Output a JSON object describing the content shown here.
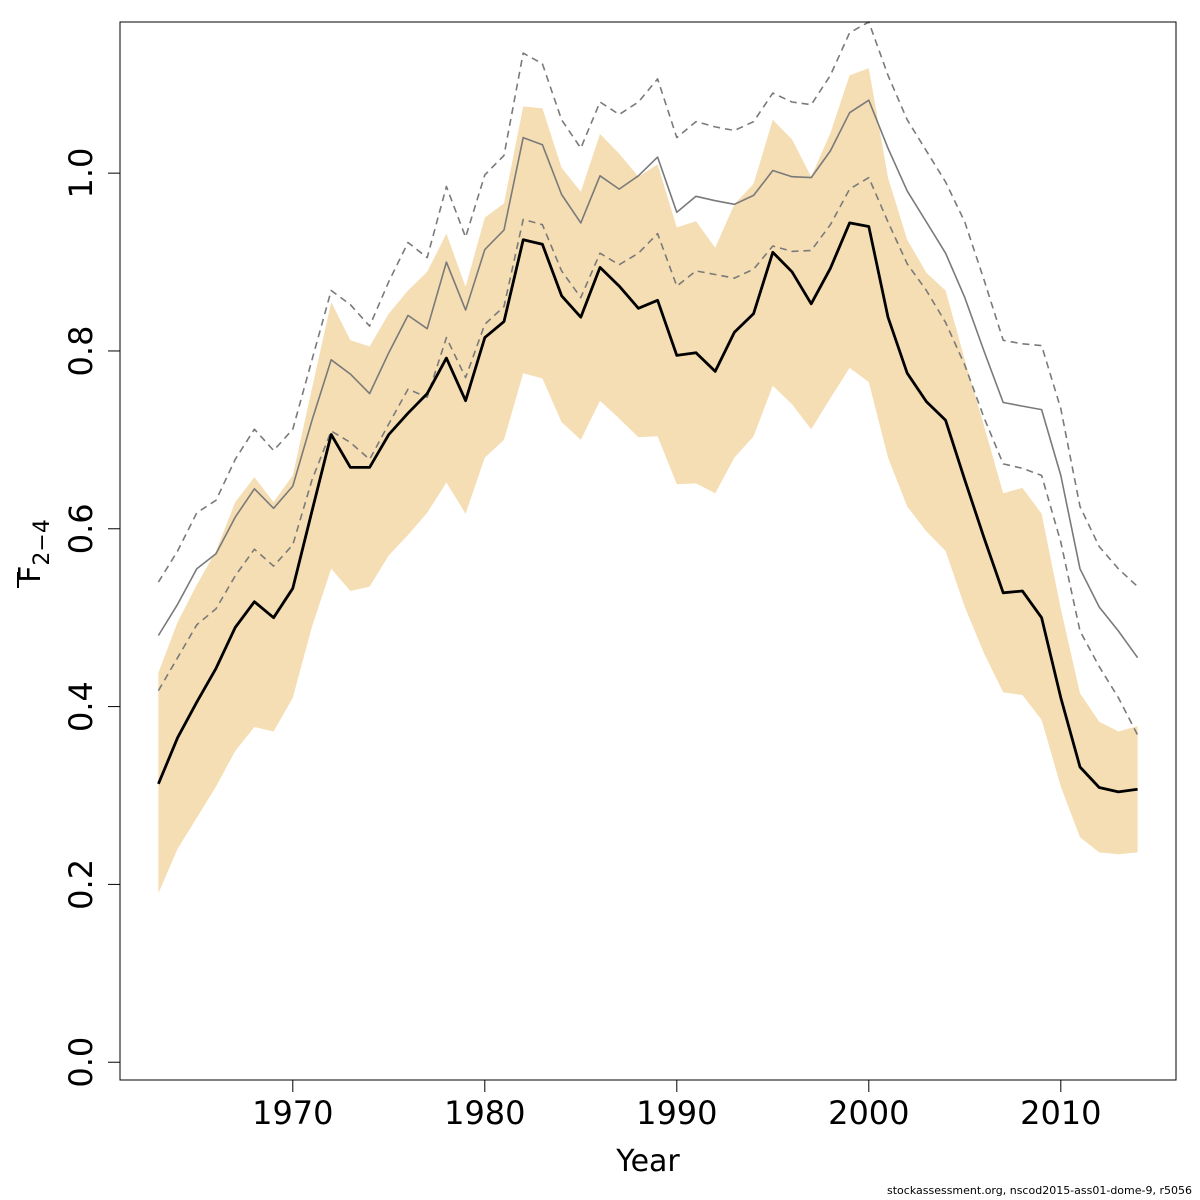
{
  "chart_data": {
    "type": "line",
    "xlabel": "Year",
    "ylabel": {
      "base": "F",
      "subscript": "2−4"
    },
    "xlim": [
      1961,
      2016
    ],
    "ylim": [
      -0.02,
      1.17
    ],
    "x_ticks": [
      1970,
      1980,
      1990,
      2000,
      2010
    ],
    "y_ticks": [
      0.0,
      0.2,
      0.4,
      0.6,
      0.8,
      1.0
    ],
    "x_tick_labels": [
      "1970",
      "1980",
      "1990",
      "2000",
      "2010"
    ],
    "y_tick_labels": [
      "0.0",
      "0.2",
      "0.4",
      "0.6",
      "0.8",
      "1.0"
    ],
    "colors": {
      "band": "#f5deb3",
      "estimate": "#000000",
      "retro": "#7a7a7a"
    },
    "x": [
      1963,
      1964,
      1965,
      1966,
      1967,
      1968,
      1969,
      1970,
      1971,
      1972,
      1973,
      1974,
      1975,
      1976,
      1977,
      1978,
      1979,
      1980,
      1981,
      1982,
      1983,
      1984,
      1985,
      1986,
      1987,
      1988,
      1989,
      1990,
      1991,
      1992,
      1993,
      1994,
      1995,
      1996,
      1997,
      1998,
      1999,
      2000,
      2001,
      2002,
      2003,
      2004,
      2005,
      2006,
      2007,
      2008,
      2009,
      2010,
      2011,
      2012,
      2013,
      2014
    ],
    "series": [
      {
        "role": "confidence-band",
        "lower": [
          0.19,
          0.24,
          0.275,
          0.31,
          0.35,
          0.377,
          0.372,
          0.41,
          0.49,
          0.555,
          0.53,
          0.535,
          0.57,
          0.593,
          0.618,
          0.652,
          0.617,
          0.68,
          0.7,
          0.775,
          0.769,
          0.72,
          0.7,
          0.744,
          0.724,
          0.703,
          0.704,
          0.65,
          0.651,
          0.64,
          0.68,
          0.704,
          0.761,
          0.74,
          0.712,
          0.747,
          0.781,
          0.765,
          0.68,
          0.625,
          0.597,
          0.575,
          0.512,
          0.46,
          0.416,
          0.413,
          0.385,
          0.31,
          0.253,
          0.236,
          0.234,
          0.236
        ],
        "upper": [
          0.438,
          0.495,
          0.537,
          0.575,
          0.63,
          0.658,
          0.63,
          0.66,
          0.758,
          0.855,
          0.812,
          0.805,
          0.842,
          0.868,
          0.889,
          0.932,
          0.872,
          0.95,
          0.966,
          1.075,
          1.073,
          1.006,
          0.979,
          1.044,
          1.022,
          0.996,
          1.01,
          0.939,
          0.946,
          0.916,
          0.965,
          0.988,
          1.06,
          1.038,
          0.996,
          1.045,
          1.11,
          1.118,
          0.995,
          0.925,
          0.888,
          0.868,
          0.79,
          0.716,
          0.64,
          0.646,
          0.617,
          0.51,
          0.415,
          0.383,
          0.372,
          0.378
        ]
      },
      {
        "role": "estimate",
        "values": [
          0.313,
          0.365,
          0.405,
          0.443,
          0.489,
          0.518,
          0.5,
          0.533,
          0.62,
          0.706,
          0.669,
          0.669,
          0.706,
          0.73,
          0.752,
          0.792,
          0.744,
          0.815,
          0.833,
          0.925,
          0.92,
          0.862,
          0.838,
          0.894,
          0.873,
          0.848,
          0.857,
          0.795,
          0.798,
          0.777,
          0.821,
          0.842,
          0.911,
          0.889,
          0.853,
          0.893,
          0.944,
          0.94,
          0.838,
          0.775,
          0.743,
          0.722,
          0.655,
          0.59,
          0.528,
          0.53,
          0.5,
          0.41,
          0.332,
          0.309,
          0.304,
          0.307
        ]
      },
      {
        "role": "retro-upper",
        "values": [
          0.54,
          0.575,
          0.618,
          0.632,
          0.678,
          0.712,
          0.688,
          0.712,
          0.79,
          0.868,
          0.852,
          0.828,
          0.878,
          0.922,
          0.905,
          0.985,
          0.928,
          0.998,
          1.02,
          1.135,
          1.123,
          1.06,
          1.028,
          1.08,
          1.066,
          1.08,
          1.106,
          1.04,
          1.058,
          1.052,
          1.048,
          1.058,
          1.09,
          1.08,
          1.077,
          1.11,
          1.158,
          1.17,
          1.11,
          1.06,
          1.025,
          0.99,
          0.945,
          0.88,
          0.812,
          0.808,
          0.806,
          0.735,
          0.625,
          0.58,
          0.555,
          0.535
        ]
      },
      {
        "role": "retro-central",
        "values": [
          0.48,
          0.515,
          0.555,
          0.572,
          0.613,
          0.645,
          0.623,
          0.648,
          0.722,
          0.79,
          0.774,
          0.752,
          0.798,
          0.84,
          0.825,
          0.9,
          0.846,
          0.914,
          0.936,
          1.04,
          1.032,
          0.976,
          0.944,
          0.997,
          0.982,
          0.997,
          1.018,
          0.956,
          0.974,
          0.969,
          0.965,
          0.975,
          1.003,
          0.996,
          0.995,
          1.025,
          1.068,
          1.082,
          1.028,
          0.98,
          0.945,
          0.91,
          0.86,
          0.8,
          0.742,
          0.738,
          0.734,
          0.66,
          0.555,
          0.512,
          0.485,
          0.455
        ]
      },
      {
        "role": "retro-lower",
        "values": [
          0.418,
          0.455,
          0.492,
          0.51,
          0.547,
          0.577,
          0.558,
          0.582,
          0.655,
          0.71,
          0.697,
          0.678,
          0.718,
          0.757,
          0.748,
          0.815,
          0.77,
          0.83,
          0.85,
          0.948,
          0.942,
          0.89,
          0.86,
          0.91,
          0.897,
          0.91,
          0.932,
          0.873,
          0.89,
          0.886,
          0.882,
          0.892,
          0.918,
          0.912,
          0.913,
          0.942,
          0.982,
          0.995,
          0.945,
          0.898,
          0.868,
          0.832,
          0.784,
          0.725,
          0.673,
          0.668,
          0.66,
          0.585,
          0.485,
          0.445,
          0.41,
          0.368
        ]
      }
    ]
  },
  "footer": {
    "text": "stockassessment.org, nscod2015-ass01-dome-9, r5056"
  }
}
